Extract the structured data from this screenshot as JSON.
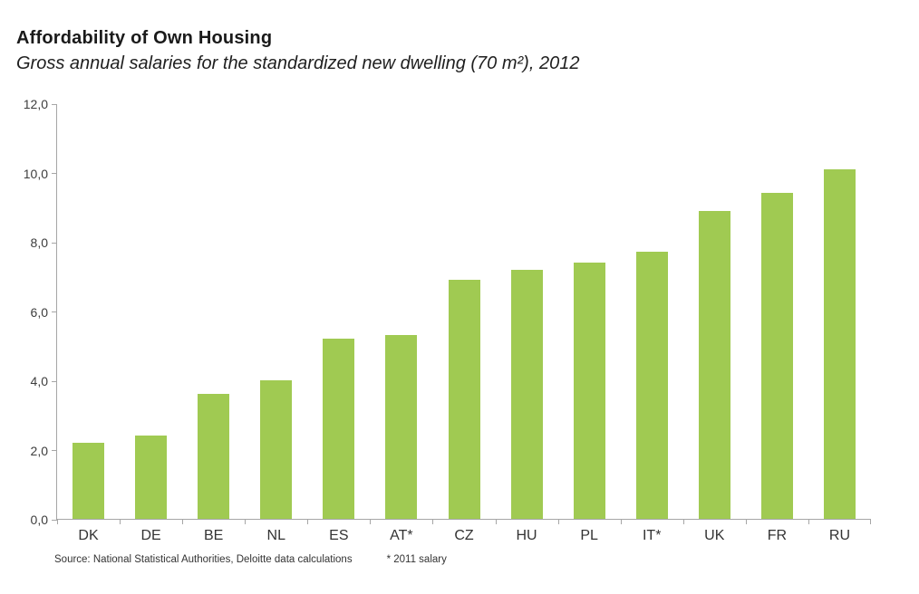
{
  "header": {
    "title": "Affordability of Own Housing",
    "subtitle": "Gross annual salaries for the standardized new dwelling (70 m²), 2012"
  },
  "chart_data": {
    "type": "bar",
    "title": "Affordability of Own Housing",
    "subtitle": "Gross annual salaries for the standardized new dwelling (70 m²), 2012",
    "categories": [
      "DK",
      "DE",
      "BE",
      "NL",
      "ES",
      "AT*",
      "CZ",
      "HU",
      "PL",
      "IT*",
      "UK",
      "FR",
      "RU"
    ],
    "values": [
      2.2,
      2.4,
      3.6,
      4.0,
      5.2,
      5.3,
      6.9,
      7.2,
      7.4,
      7.7,
      8.9,
      9.4,
      10.1
    ],
    "ylabel": "",
    "xlabel": "",
    "ylim": [
      0,
      12
    ],
    "y_ticks": [
      {
        "value": 12,
        "label": "12,0"
      },
      {
        "value": 10,
        "label": "10,0"
      },
      {
        "value": 8,
        "label": "8,0"
      },
      {
        "value": 6,
        "label": "6,0"
      },
      {
        "value": 4,
        "label": "4,0"
      },
      {
        "value": 2,
        "label": "2,0"
      },
      {
        "value": 0,
        "label": "0,0"
      }
    ],
    "grid": false,
    "legend_position": "none",
    "bar_color": "#a0ca52",
    "axis_color": "#a6a6a6"
  },
  "footer": {
    "source": "Source: National Statistical Authorities, Deloitte data calculations",
    "note": "* 2011 salary"
  }
}
